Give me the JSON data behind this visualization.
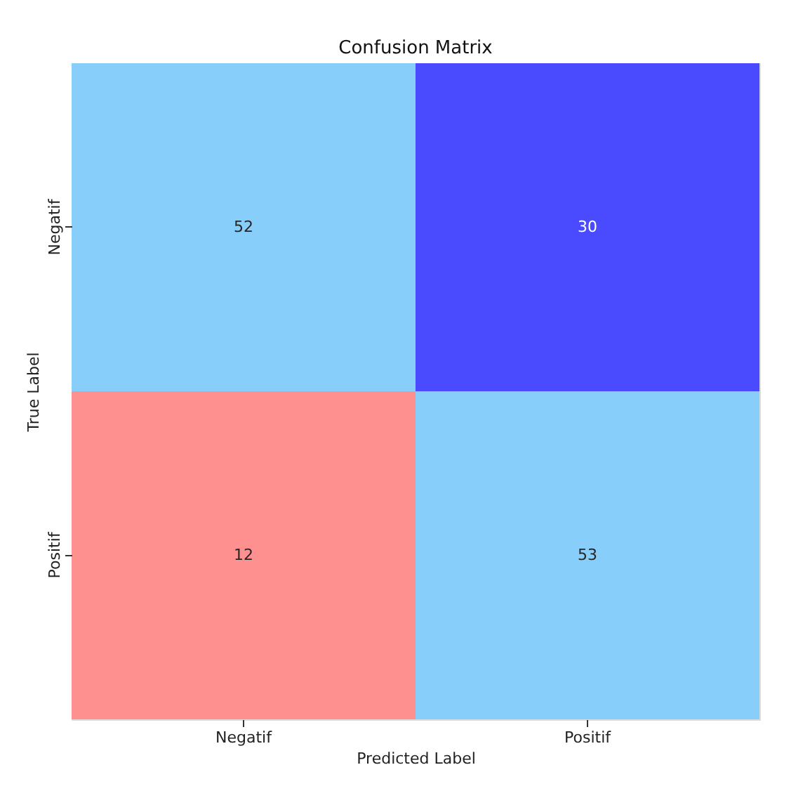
{
  "chart_data": {
    "type": "heatmap",
    "title": "Confusion Matrix",
    "xlabel": "Predicted Label",
    "ylabel": "True Label",
    "categories": [
      "Negatif",
      "Positif"
    ],
    "y_categories": [
      "Negatif",
      "Positif"
    ],
    "cells": [
      [
        52,
        30
      ],
      [
        12,
        53
      ]
    ],
    "colors": [
      [
        "#87cefa",
        "#4a4aff"
      ],
      [
        "#ff9090",
        "#87cefa"
      ]
    ],
    "data_labels": true
  }
}
